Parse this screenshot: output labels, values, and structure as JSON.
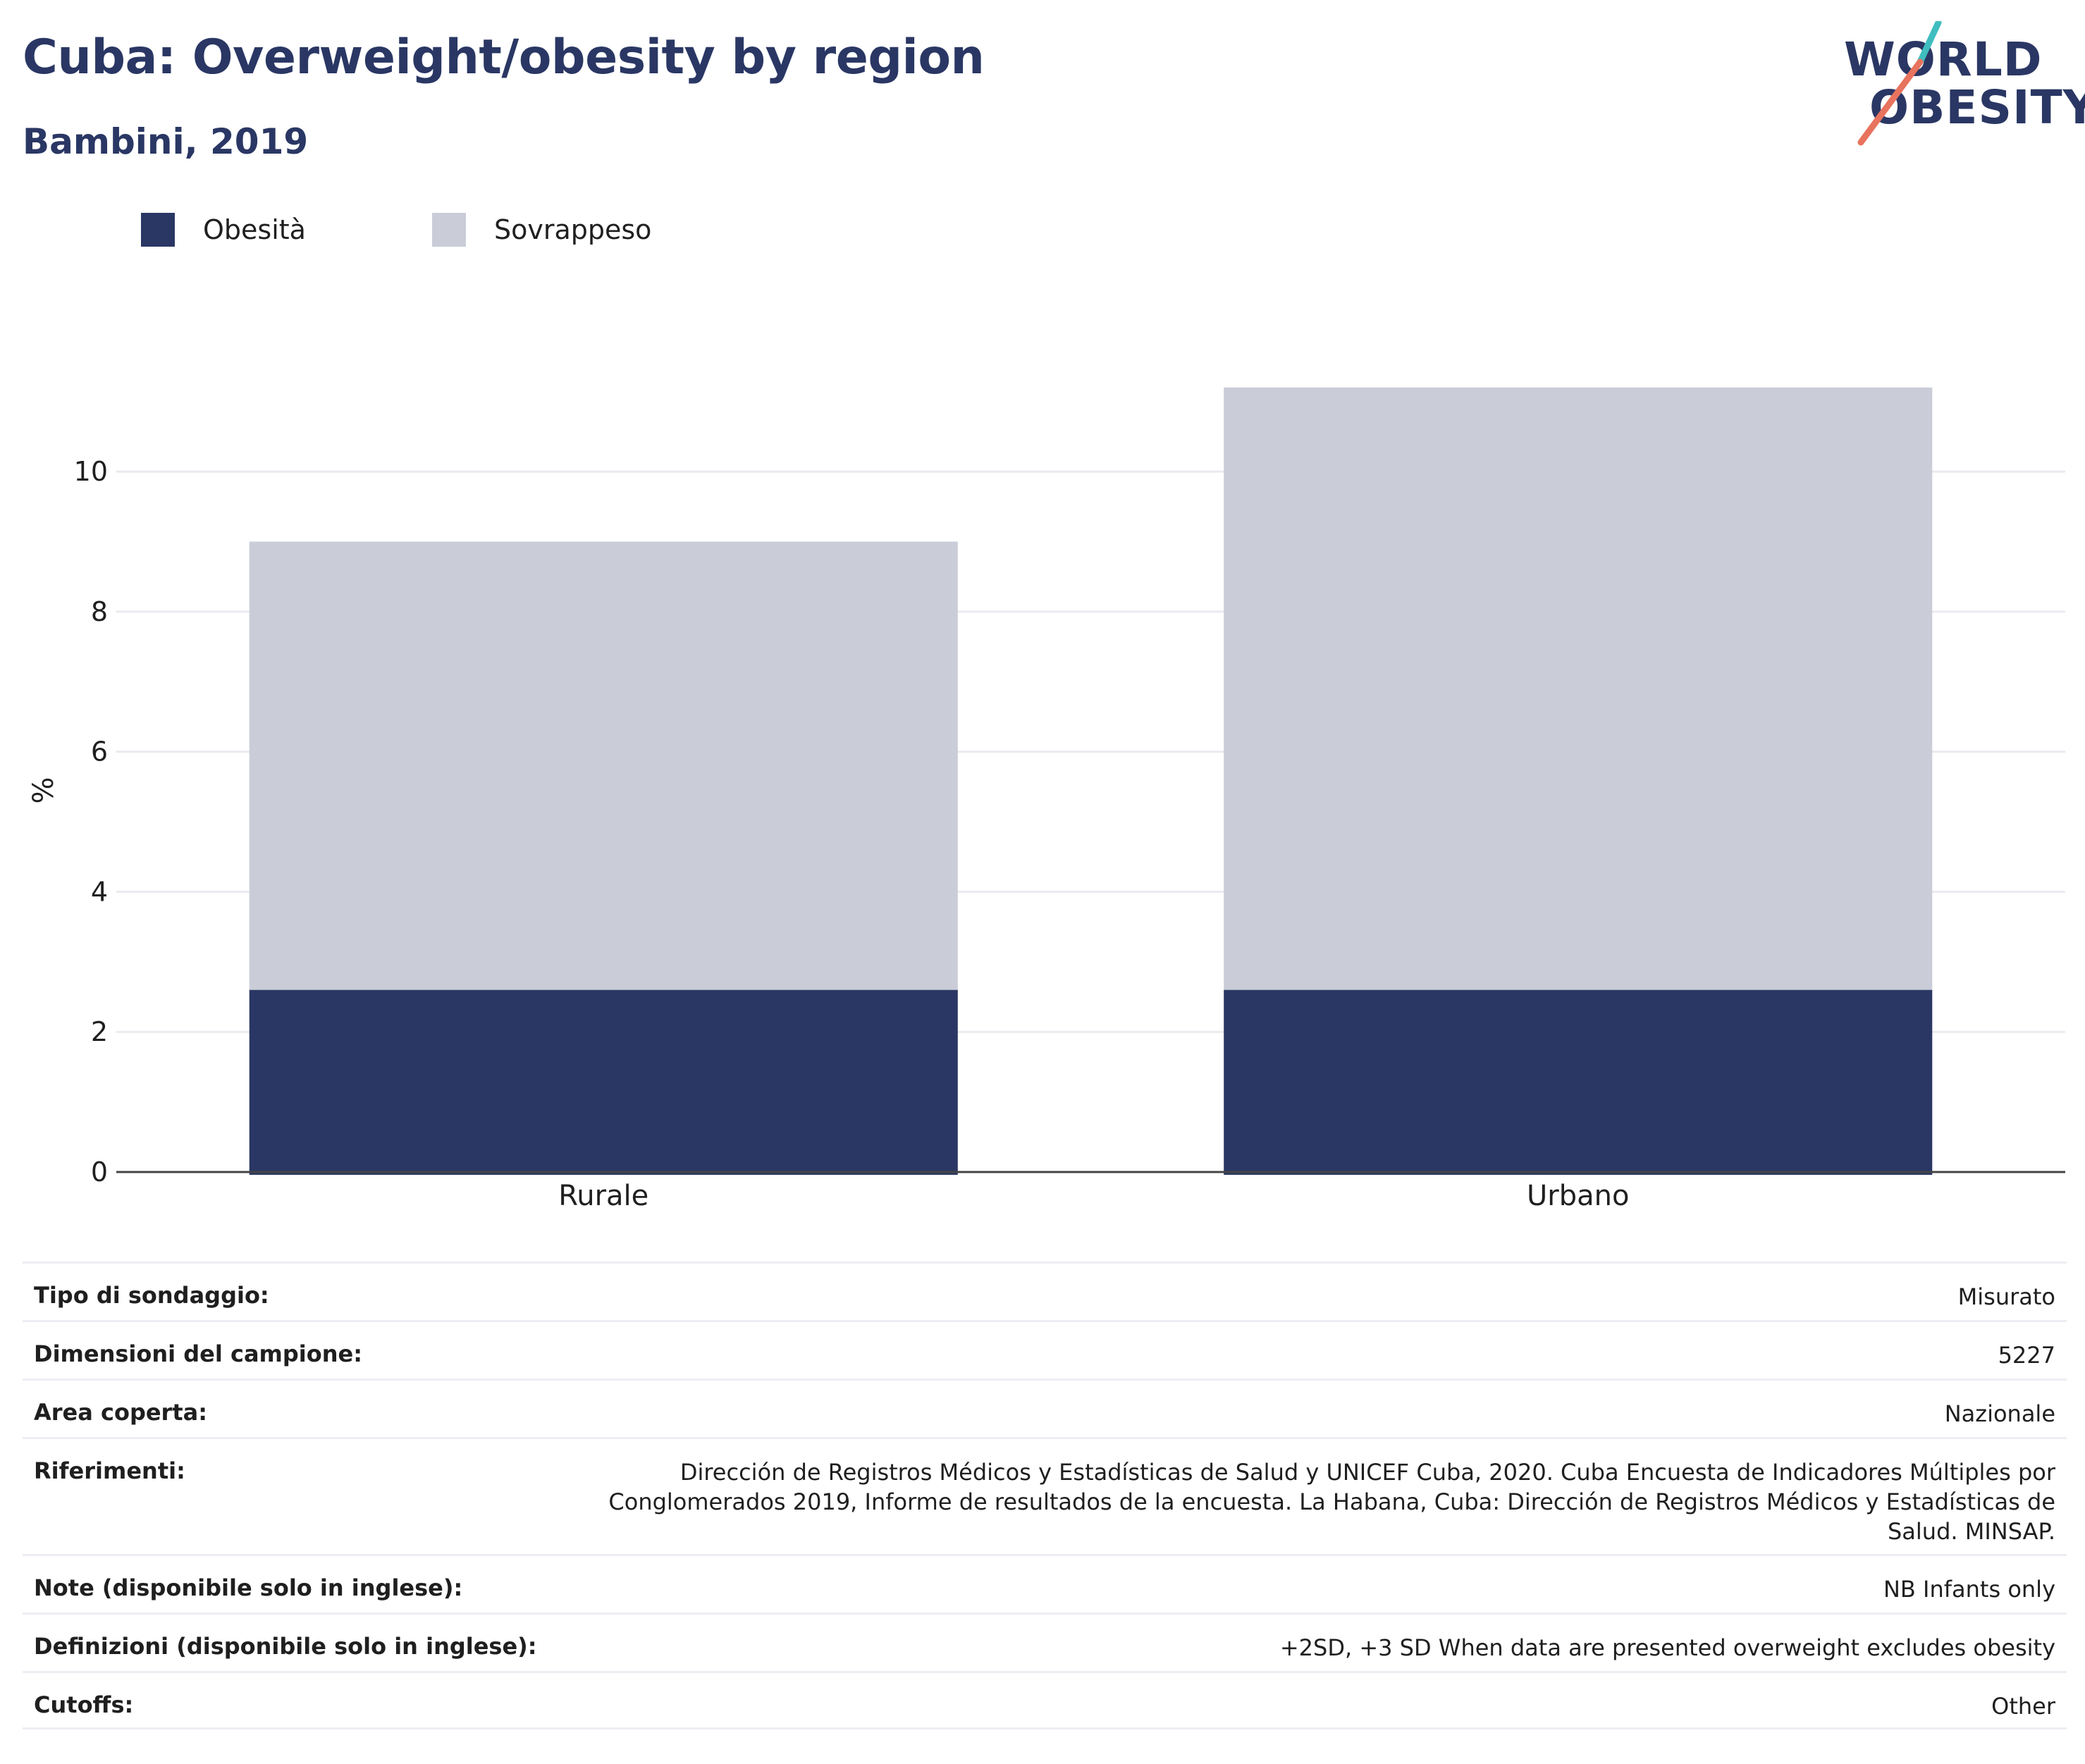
{
  "title": "Cuba: Overweight/obesity by region",
  "subtitle": "Bambini, 2019",
  "logo": {
    "line1": "WORLD",
    "line2": "OBESITY"
  },
  "colors": {
    "obesity": "#2a3764",
    "overweight": "#cacdd8",
    "accent_teal": "#3fbdbf",
    "accent_coral": "#e8735e"
  },
  "legend": [
    {
      "label": "Obesità",
      "color": "#2a3764"
    },
    {
      "label": "Sovrappeso",
      "color": "#cacdd8"
    }
  ],
  "chart_data": {
    "type": "bar",
    "stacked": true,
    "categories": [
      "Rurale",
      "Urbano"
    ],
    "series": [
      {
        "name": "Obesità",
        "values": [
          2.6,
          2.6
        ]
      },
      {
        "name": "Sovrappeso",
        "values": [
          6.4,
          8.6
        ]
      }
    ],
    "ylabel": "%",
    "ylim": [
      0,
      11.5
    ],
    "yticks": [
      0,
      2,
      4,
      6,
      8,
      10
    ],
    "grid": true,
    "legend_position": "top-left"
  },
  "info": [
    {
      "key": "Tipo di sondaggio:",
      "value": "Misurato"
    },
    {
      "key": "Dimensioni del campione:",
      "value": "5227"
    },
    {
      "key": "Area coperta:",
      "value": "Nazionale"
    },
    {
      "key": "Riferimenti:",
      "value": "Dirección de Registros Médicos y Estadísticas de Salud y UNICEF Cuba, 2020. Cuba Encuesta de Indicadores Múltiples por Conglomerados 2019, Informe de resultados de la encuesta. La Habana, Cuba: Dirección de Registros Médicos y Estadísticas de Salud. MINSAP."
    },
    {
      "key": "Note (disponibile solo in inglese):",
      "value": "NB Infants only"
    },
    {
      "key": "Definizioni (disponibile solo in inglese):",
      "value": "+2SD, +3 SD When data are presented overweight excludes obesity"
    },
    {
      "key": "Cutoffs:",
      "value": "Other"
    }
  ]
}
